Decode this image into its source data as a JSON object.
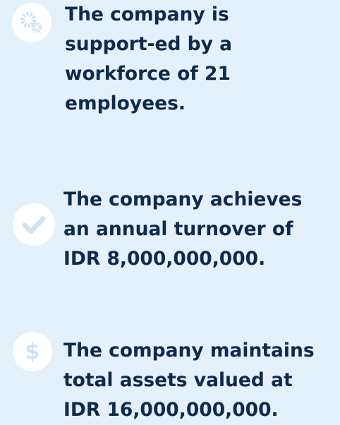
{
  "items": [
    {
      "icon": "gears",
      "lines": [
        "The company is",
        "support-ed by a",
        "workforce of 21",
        "employees."
      ]
    },
    {
      "icon": "check",
      "lines": [
        "The company achieves",
        "an annual turnover of",
        "IDR 8,000,000,000."
      ]
    },
    {
      "icon": "dollar",
      "lines": [
        "The company maintains",
        "total assets valued at",
        "IDR 16,000,000,000."
      ]
    }
  ]
}
